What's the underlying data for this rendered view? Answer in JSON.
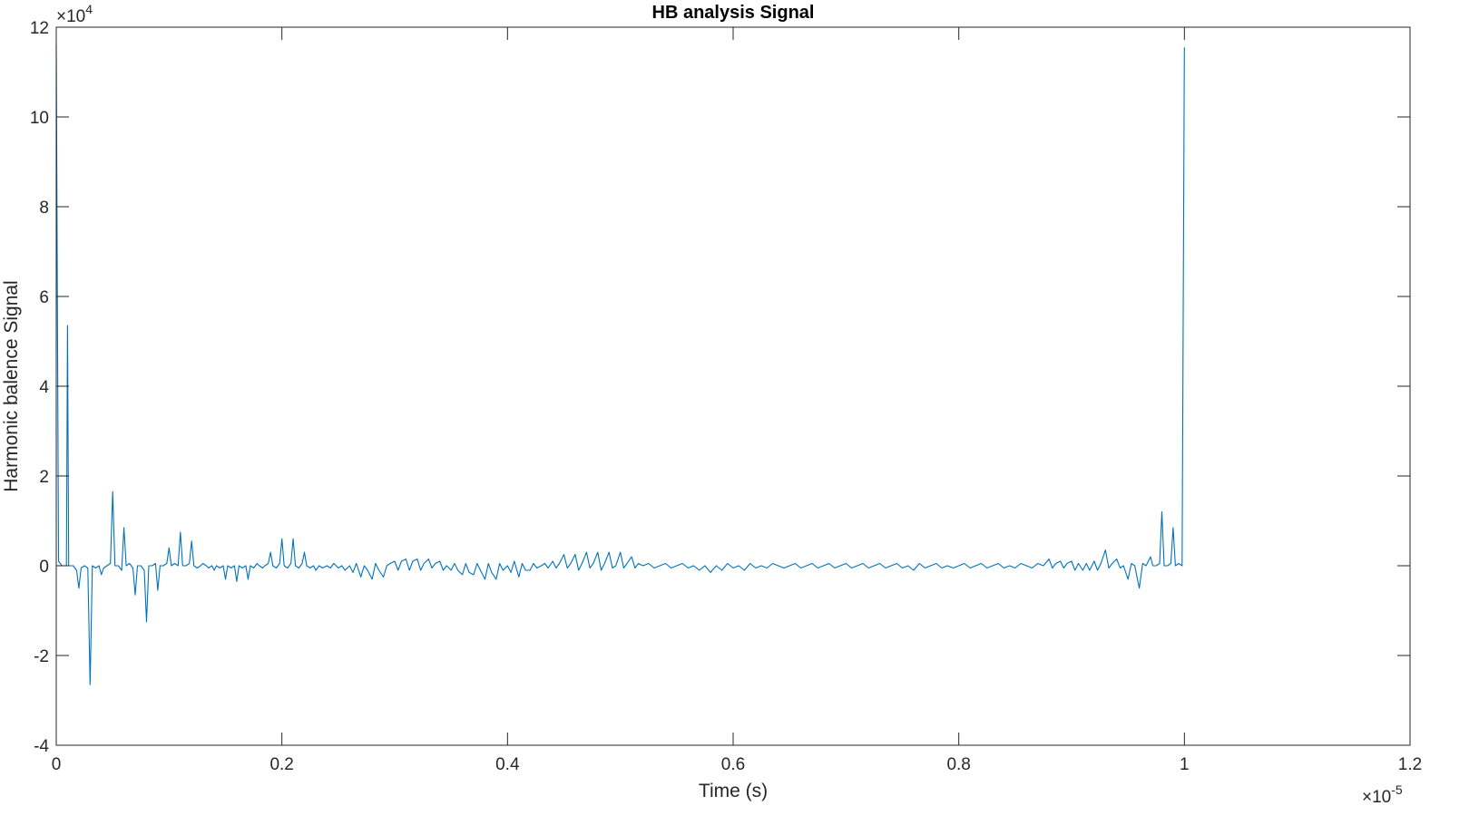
{
  "chart_data": {
    "type": "line",
    "title": "HB analysis Signal",
    "xlabel": "Time (s)",
    "ylabel": "Harmonic balence Signal",
    "x_multiplier_base": "×10",
    "x_multiplier_exp": "-5",
    "y_multiplier_base": "×10",
    "y_multiplier_exp": "4",
    "xlim": [
      0,
      1.2
    ],
    "ylim": [
      -4,
      12
    ],
    "x_ticks": [
      0,
      0.2,
      0.4,
      0.6,
      0.8,
      1,
      1.2
    ],
    "x_tick_labels": [
      "0",
      "0.2",
      "0.4",
      "0.6",
      "0.8",
      "1",
      "1.2"
    ],
    "y_ticks": [
      -4,
      -2,
      0,
      2,
      4,
      6,
      8,
      10,
      12
    ],
    "y_tick_labels": [
      "-4",
      "-2",
      "0",
      "2",
      "4",
      "6",
      "8",
      "10",
      "12"
    ],
    "grid": false,
    "box": true,
    "line_color": "#0072BD",
    "series": [
      {
        "name": "",
        "points": [
          [
            0.0,
            11.6
          ],
          [
            0.002,
            0.1
          ],
          [
            0.005,
            0.0
          ],
          [
            0.009,
            0.0
          ],
          [
            0.01,
            5.35
          ],
          [
            0.011,
            0.0
          ],
          [
            0.015,
            0.0
          ],
          [
            0.018,
            -0.1
          ],
          [
            0.02,
            -0.5
          ],
          [
            0.022,
            -0.05
          ],
          [
            0.025,
            0.0
          ],
          [
            0.028,
            -0.05
          ],
          [
            0.03,
            -2.65
          ],
          [
            0.032,
            0.0
          ],
          [
            0.035,
            -0.05
          ],
          [
            0.038,
            0.0
          ],
          [
            0.04,
            -0.2
          ],
          [
            0.042,
            -0.05
          ],
          [
            0.045,
            0.0
          ],
          [
            0.048,
            0.05
          ],
          [
            0.05,
            1.65
          ],
          [
            0.052,
            0.0
          ],
          [
            0.055,
            0.0
          ],
          [
            0.058,
            -0.1
          ],
          [
            0.06,
            0.85
          ],
          [
            0.062,
            0.0
          ],
          [
            0.065,
            0.05
          ],
          [
            0.068,
            -0.05
          ],
          [
            0.07,
            -0.65
          ],
          [
            0.072,
            0.0
          ],
          [
            0.075,
            0.0
          ],
          [
            0.078,
            -0.1
          ],
          [
            0.08,
            -1.25
          ],
          [
            0.082,
            0.0
          ],
          [
            0.085,
            0.0
          ],
          [
            0.088,
            0.05
          ],
          [
            0.09,
            -0.55
          ],
          [
            0.092,
            0.0
          ],
          [
            0.095,
            0.0
          ],
          [
            0.098,
            0.05
          ],
          [
            0.1,
            0.4
          ],
          [
            0.102,
            0.0
          ],
          [
            0.105,
            0.05
          ],
          [
            0.108,
            0.0
          ],
          [
            0.11,
            0.75
          ],
          [
            0.112,
            0.0
          ],
          [
            0.115,
            0.0
          ],
          [
            0.118,
            0.05
          ],
          [
            0.12,
            0.55
          ],
          [
            0.122,
            0.0
          ],
          [
            0.125,
            -0.05
          ],
          [
            0.128,
            0.0
          ],
          [
            0.13,
            0.05
          ],
          [
            0.133,
            0.0
          ],
          [
            0.135,
            -0.05
          ],
          [
            0.138,
            0.0
          ],
          [
            0.14,
            -0.1
          ],
          [
            0.142,
            0.0
          ],
          [
            0.145,
            -0.05
          ],
          [
            0.148,
            0.0
          ],
          [
            0.15,
            -0.3
          ],
          [
            0.152,
            0.0
          ],
          [
            0.155,
            -0.05
          ],
          [
            0.158,
            0.0
          ],
          [
            0.16,
            -0.35
          ],
          [
            0.162,
            0.0
          ],
          [
            0.165,
            -0.05
          ],
          [
            0.168,
            0.0
          ],
          [
            0.17,
            -0.3
          ],
          [
            0.172,
            0.0
          ],
          [
            0.175,
            -0.05
          ],
          [
            0.178,
            0.05
          ],
          [
            0.18,
            0.0
          ],
          [
            0.183,
            -0.05
          ],
          [
            0.185,
            0.0
          ],
          [
            0.188,
            0.05
          ],
          [
            0.19,
            0.3
          ],
          [
            0.192,
            0.0
          ],
          [
            0.195,
            -0.05
          ],
          [
            0.198,
            0.05
          ],
          [
            0.2,
            0.6
          ],
          [
            0.202,
            0.0
          ],
          [
            0.205,
            -0.05
          ],
          [
            0.208,
            0.05
          ],
          [
            0.21,
            0.6
          ],
          [
            0.212,
            0.0
          ],
          [
            0.215,
            -0.05
          ],
          [
            0.218,
            0.05
          ],
          [
            0.22,
            0.3
          ],
          [
            0.222,
            0.0
          ],
          [
            0.225,
            -0.05
          ],
          [
            0.228,
            0.0
          ],
          [
            0.23,
            -0.1
          ],
          [
            0.233,
            0.0
          ],
          [
            0.236,
            -0.05
          ],
          [
            0.24,
            0.0
          ],
          [
            0.243,
            -0.05
          ],
          [
            0.246,
            0.05
          ],
          [
            0.25,
            -0.05
          ],
          [
            0.253,
            0.0
          ],
          [
            0.256,
            -0.1
          ],
          [
            0.26,
            0.0
          ],
          [
            0.263,
            -0.15
          ],
          [
            0.266,
            0.05
          ],
          [
            0.27,
            -0.25
          ],
          [
            0.273,
            0.0
          ],
          [
            0.276,
            -0.1
          ],
          [
            0.28,
            -0.3
          ],
          [
            0.283,
            0.05
          ],
          [
            0.286,
            -0.1
          ],
          [
            0.29,
            -0.25
          ],
          [
            0.293,
            0.0
          ],
          [
            0.296,
            0.05
          ],
          [
            0.3,
            0.1
          ],
          [
            0.303,
            -0.1
          ],
          [
            0.306,
            0.1
          ],
          [
            0.31,
            0.15
          ],
          [
            0.313,
            -0.1
          ],
          [
            0.316,
            0.1
          ],
          [
            0.32,
            0.15
          ],
          [
            0.323,
            -0.1
          ],
          [
            0.326,
            0.05
          ],
          [
            0.33,
            0.15
          ],
          [
            0.333,
            -0.05
          ],
          [
            0.336,
            0.05
          ],
          [
            0.34,
            0.1
          ],
          [
            0.343,
            -0.1
          ],
          [
            0.346,
            0.0
          ],
          [
            0.35,
            -0.1
          ],
          [
            0.353,
            0.05
          ],
          [
            0.356,
            -0.1
          ],
          [
            0.36,
            -0.2
          ],
          [
            0.363,
            0.05
          ],
          [
            0.366,
            -0.15
          ],
          [
            0.37,
            -0.2
          ],
          [
            0.373,
            0.05
          ],
          [
            0.376,
            -0.1
          ],
          [
            0.38,
            -0.3
          ],
          [
            0.383,
            0.05
          ],
          [
            0.386,
            -0.15
          ],
          [
            0.39,
            -0.3
          ],
          [
            0.393,
            0.05
          ],
          [
            0.396,
            -0.1
          ],
          [
            0.4,
            0.0
          ],
          [
            0.403,
            -0.15
          ],
          [
            0.406,
            0.1
          ],
          [
            0.41,
            -0.25
          ],
          [
            0.413,
            0.05
          ],
          [
            0.416,
            -0.1
          ],
          [
            0.42,
            -0.1
          ],
          [
            0.423,
            0.05
          ],
          [
            0.426,
            -0.05
          ],
          [
            0.43,
            0.0
          ],
          [
            0.433,
            0.05
          ],
          [
            0.436,
            -0.05
          ],
          [
            0.44,
            0.1
          ],
          [
            0.443,
            -0.05
          ],
          [
            0.446,
            0.05
          ],
          [
            0.45,
            0.25
          ],
          [
            0.453,
            -0.05
          ],
          [
            0.456,
            0.05
          ],
          [
            0.46,
            0.25
          ],
          [
            0.463,
            -0.1
          ],
          [
            0.466,
            0.05
          ],
          [
            0.47,
            0.3
          ],
          [
            0.473,
            -0.05
          ],
          [
            0.476,
            0.05
          ],
          [
            0.48,
            0.3
          ],
          [
            0.483,
            -0.1
          ],
          [
            0.486,
            0.05
          ],
          [
            0.49,
            0.3
          ],
          [
            0.493,
            -0.05
          ],
          [
            0.496,
            0.0
          ],
          [
            0.5,
            0.3
          ],
          [
            0.503,
            -0.05
          ],
          [
            0.506,
            0.05
          ],
          [
            0.51,
            0.2
          ],
          [
            0.513,
            -0.05
          ],
          [
            0.516,
            0.05
          ],
          [
            0.52,
            0.0
          ],
          [
            0.525,
            0.05
          ],
          [
            0.53,
            -0.05
          ],
          [
            0.535,
            0.0
          ],
          [
            0.54,
            0.05
          ],
          [
            0.545,
            -0.05
          ],
          [
            0.55,
            0.0
          ],
          [
            0.555,
            0.05
          ],
          [
            0.56,
            -0.05
          ],
          [
            0.565,
            0.0
          ],
          [
            0.57,
            -0.1
          ],
          [
            0.575,
            0.0
          ],
          [
            0.58,
            -0.15
          ],
          [
            0.585,
            0.0
          ],
          [
            0.59,
            -0.1
          ],
          [
            0.595,
            0.05
          ],
          [
            0.6,
            -0.05
          ],
          [
            0.605,
            0.0
          ],
          [
            0.61,
            -0.1
          ],
          [
            0.615,
            0.05
          ],
          [
            0.62,
            -0.05
          ],
          [
            0.625,
            0.0
          ],
          [
            0.63,
            -0.05
          ],
          [
            0.635,
            0.05
          ],
          [
            0.64,
            0.0
          ],
          [
            0.645,
            -0.05
          ],
          [
            0.65,
            0.0
          ],
          [
            0.655,
            0.05
          ],
          [
            0.66,
            -0.05
          ],
          [
            0.665,
            0.0
          ],
          [
            0.67,
            0.05
          ],
          [
            0.675,
            -0.05
          ],
          [
            0.68,
            0.0
          ],
          [
            0.685,
            0.05
          ],
          [
            0.69,
            -0.05
          ],
          [
            0.695,
            0.0
          ],
          [
            0.7,
            0.05
          ],
          [
            0.705,
            -0.05
          ],
          [
            0.71,
            0.0
          ],
          [
            0.715,
            0.05
          ],
          [
            0.72,
            -0.05
          ],
          [
            0.725,
            0.0
          ],
          [
            0.73,
            0.05
          ],
          [
            0.735,
            -0.05
          ],
          [
            0.74,
            0.0
          ],
          [
            0.745,
            0.05
          ],
          [
            0.75,
            -0.05
          ],
          [
            0.755,
            0.0
          ],
          [
            0.76,
            -0.1
          ],
          [
            0.765,
            0.05
          ],
          [
            0.77,
            -0.05
          ],
          [
            0.775,
            0.0
          ],
          [
            0.78,
            0.05
          ],
          [
            0.785,
            -0.05
          ],
          [
            0.79,
            0.0
          ],
          [
            0.795,
            -0.05
          ],
          [
            0.8,
            0.0
          ],
          [
            0.805,
            0.05
          ],
          [
            0.81,
            -0.05
          ],
          [
            0.815,
            0.0
          ],
          [
            0.82,
            0.05
          ],
          [
            0.825,
            -0.05
          ],
          [
            0.83,
            0.0
          ],
          [
            0.835,
            0.05
          ],
          [
            0.84,
            -0.05
          ],
          [
            0.845,
            0.0
          ],
          [
            0.85,
            -0.05
          ],
          [
            0.855,
            0.05
          ],
          [
            0.86,
            0.0
          ],
          [
            0.865,
            -0.05
          ],
          [
            0.87,
            0.05
          ],
          [
            0.875,
            0.0
          ],
          [
            0.88,
            0.15
          ],
          [
            0.883,
            -0.05
          ],
          [
            0.886,
            0.05
          ],
          [
            0.89,
            0.1
          ],
          [
            0.893,
            -0.05
          ],
          [
            0.896,
            0.05
          ],
          [
            0.9,
            0.1
          ],
          [
            0.903,
            -0.1
          ],
          [
            0.906,
            0.05
          ],
          [
            0.91,
            -0.1
          ],
          [
            0.913,
            0.05
          ],
          [
            0.916,
            -0.1
          ],
          [
            0.92,
            0.1
          ],
          [
            0.923,
            -0.1
          ],
          [
            0.926,
            0.05
          ],
          [
            0.93,
            0.35
          ],
          [
            0.933,
            -0.05
          ],
          [
            0.936,
            0.05
          ],
          [
            0.94,
            0.15
          ],
          [
            0.943,
            -0.05
          ],
          [
            0.946,
            0.0
          ],
          [
            0.95,
            -0.3
          ],
          [
            0.953,
            0.05
          ],
          [
            0.956,
            0.0
          ],
          [
            0.96,
            -0.5
          ],
          [
            0.963,
            0.05
          ],
          [
            0.966,
            0.0
          ],
          [
            0.97,
            0.2
          ],
          [
            0.972,
            0.0
          ],
          [
            0.975,
            0.0
          ],
          [
            0.978,
            0.05
          ],
          [
            0.98,
            1.2
          ],
          [
            0.982,
            0.0
          ],
          [
            0.985,
            0.0
          ],
          [
            0.988,
            0.05
          ],
          [
            0.99,
            0.85
          ],
          [
            0.992,
            0.0
          ],
          [
            0.995,
            0.05
          ],
          [
            0.998,
            0.0
          ],
          [
            1.0,
            11.55
          ]
        ]
      }
    ]
  }
}
